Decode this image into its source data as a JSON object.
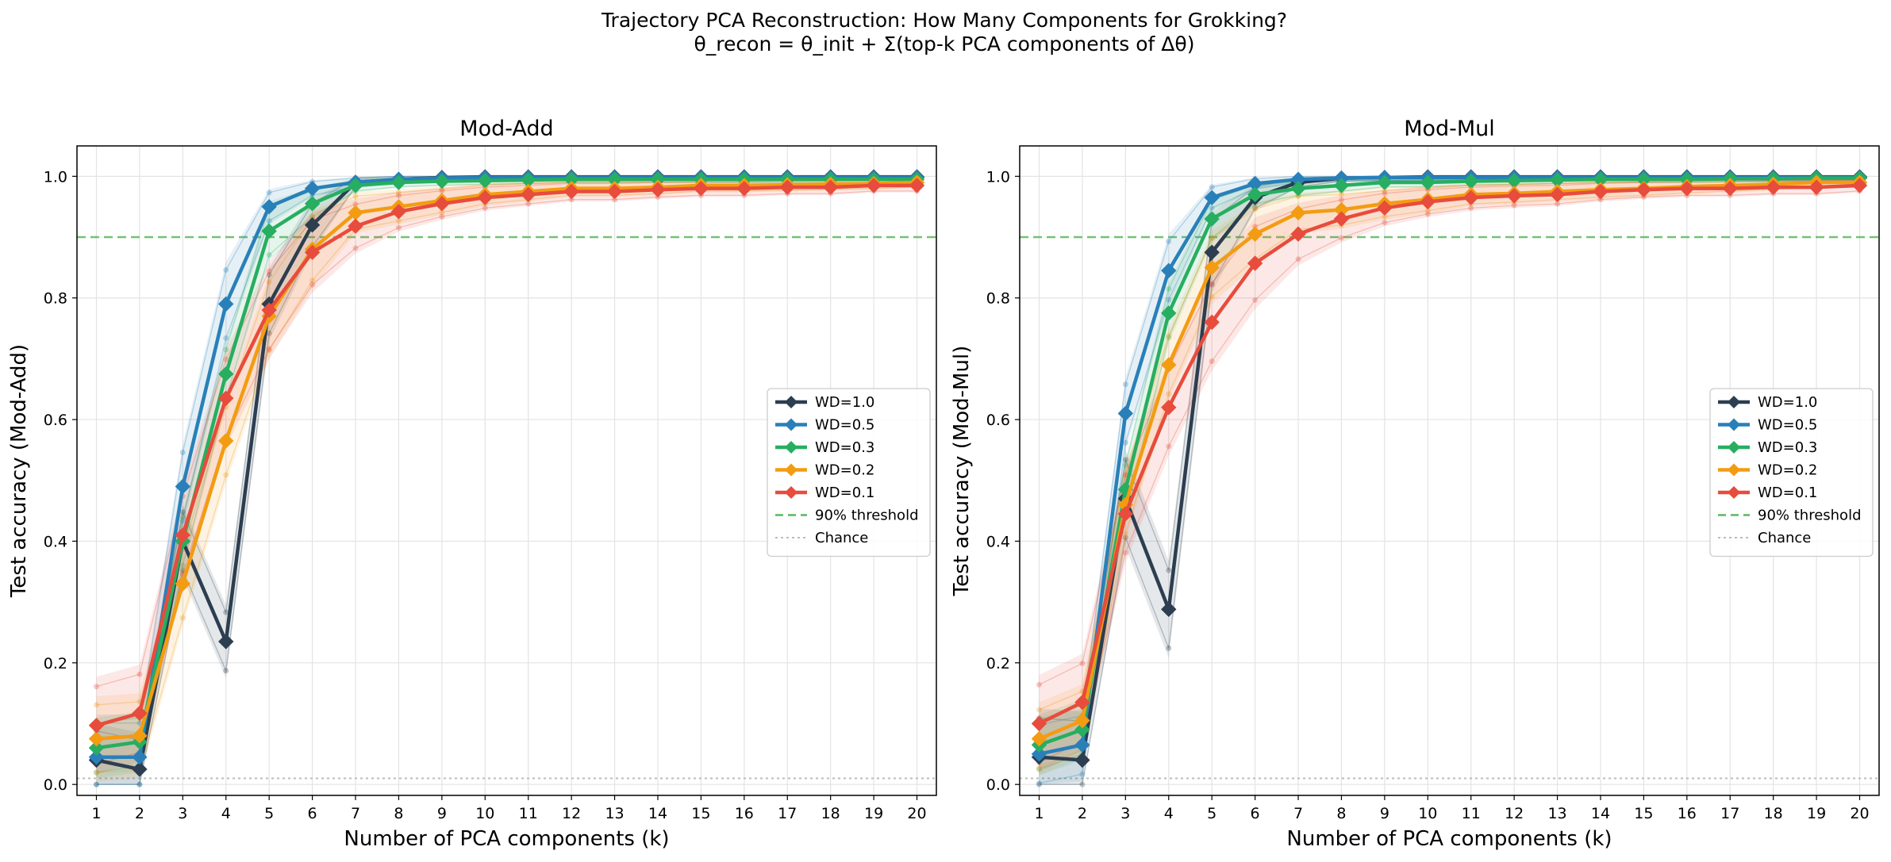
{
  "figure": {
    "title_line1": "Trajectory PCA Reconstruction: How Many Components for Grokking?",
    "title_line2": "θ_recon = θ_init + Σ(top-k PCA components of Δθ)"
  },
  "colors": {
    "WD=1.0": "#2c3e50",
    "WD=0.5": "#2980b9",
    "WD=0.3": "#27ae60",
    "WD=0.2": "#f39c12",
    "WD=0.1": "#e74c3c",
    "threshold": "#5cb85c",
    "chance": "#bbbbbb"
  },
  "chart_data": [
    {
      "type": "line",
      "title": "Mod-Add",
      "xlabel": "Number of PCA components (k)",
      "ylabel": "Test accuracy (Mod-Add)",
      "x": [
        1,
        2,
        3,
        4,
        5,
        6,
        7,
        8,
        9,
        10,
        11,
        12,
        13,
        14,
        15,
        16,
        17,
        18,
        19,
        20
      ],
      "xlim": [
        0.55,
        20.45
      ],
      "ylim": [
        -0.018,
        1.05
      ],
      "yticks": [
        0.0,
        0.2,
        0.4,
        0.6,
        0.8,
        1.0
      ],
      "ytick_labels": [
        "0.0",
        "0.2",
        "0.4",
        "0.6",
        "0.8",
        "1.0"
      ],
      "grid": true,
      "legend_position": "center-right",
      "threshold": {
        "name": "90% threshold",
        "value": 0.9
      },
      "chance": {
        "name": "Chance",
        "value": 0.01
      },
      "series": [
        {
          "name": "WD=1.0",
          "values": [
            0.04,
            0.025,
            0.4,
            0.235,
            0.79,
            0.92,
            0.99,
            0.995,
            0.998,
            0.999,
            0.999,
            0.999,
            0.999,
            0.999,
            0.999,
            0.999,
            0.999,
            0.999,
            0.999,
            0.999
          ],
          "band": 0.06
        },
        {
          "name": "WD=0.5",
          "values": [
            0.045,
            0.045,
            0.49,
            0.79,
            0.95,
            0.98,
            0.99,
            0.995,
            0.997,
            0.998,
            0.998,
            0.998,
            0.998,
            0.998,
            0.998,
            0.998,
            0.998,
            0.998,
            0.998,
            0.998
          ],
          "band": 0.07
        },
        {
          "name": "WD=0.3",
          "values": [
            0.06,
            0.07,
            0.4,
            0.675,
            0.91,
            0.955,
            0.985,
            0.99,
            0.992,
            0.993,
            0.994,
            0.995,
            0.995,
            0.995,
            0.995,
            0.995,
            0.995,
            0.995,
            0.995,
            0.995
          ],
          "band": 0.05
        },
        {
          "name": "WD=0.2",
          "values": [
            0.075,
            0.08,
            0.33,
            0.565,
            0.77,
            0.88,
            0.94,
            0.95,
            0.96,
            0.97,
            0.975,
            0.98,
            0.98,
            0.982,
            0.985,
            0.985,
            0.986,
            0.987,
            0.988,
            0.99
          ],
          "band": 0.07
        },
        {
          "name": "WD=0.1",
          "values": [
            0.097,
            0.117,
            0.41,
            0.635,
            0.78,
            0.875,
            0.918,
            0.942,
            0.955,
            0.965,
            0.97,
            0.975,
            0.975,
            0.978,
            0.98,
            0.98,
            0.982,
            0.982,
            0.985,
            0.985
          ],
          "band": 0.08
        }
      ]
    },
    {
      "type": "line",
      "title": "Mod-Mul",
      "xlabel": "Number of PCA components (k)",
      "ylabel": "Test accuracy (Mod-Mul)",
      "x": [
        1,
        2,
        3,
        4,
        5,
        6,
        7,
        8,
        9,
        10,
        11,
        12,
        13,
        14,
        15,
        16,
        17,
        18,
        19,
        20
      ],
      "xlim": [
        0.55,
        20.45
      ],
      "ylim": [
        -0.018,
        1.05
      ],
      "yticks": [
        0.0,
        0.2,
        0.4,
        0.6,
        0.8,
        1.0
      ],
      "ytick_labels": [
        "0.0",
        "0.2",
        "0.4",
        "0.6",
        "0.8",
        "1.0"
      ],
      "grid": true,
      "legend_position": "center-right",
      "threshold": {
        "name": "90% threshold",
        "value": 0.9
      },
      "chance": {
        "name": "Chance",
        "value": 0.01
      },
      "series": [
        {
          "name": "WD=1.0",
          "values": [
            0.045,
            0.04,
            0.47,
            0.288,
            0.875,
            0.965,
            0.99,
            0.997,
            0.998,
            0.999,
            0.999,
            0.999,
            0.999,
            0.999,
            0.999,
            0.999,
            0.999,
            0.999,
            0.999,
            0.999
          ],
          "band": 0.08
        },
        {
          "name": "WD=0.5",
          "values": [
            0.05,
            0.065,
            0.61,
            0.845,
            0.965,
            0.988,
            0.995,
            0.997,
            0.998,
            0.998,
            0.998,
            0.998,
            0.998,
            0.998,
            0.998,
            0.998,
            0.998,
            0.998,
            0.998,
            0.998
          ],
          "band": 0.06
        },
        {
          "name": "WD=0.3",
          "values": [
            0.065,
            0.09,
            0.485,
            0.775,
            0.93,
            0.97,
            0.98,
            0.985,
            0.99,
            0.99,
            0.992,
            0.993,
            0.994,
            0.995,
            0.995,
            0.995,
            0.996,
            0.996,
            0.997,
            0.997
          ],
          "band": 0.05
        },
        {
          "name": "WD=0.2",
          "values": [
            0.075,
            0.105,
            0.46,
            0.69,
            0.85,
            0.905,
            0.94,
            0.945,
            0.955,
            0.962,
            0.97,
            0.972,
            0.975,
            0.978,
            0.98,
            0.983,
            0.985,
            0.987,
            0.99,
            0.99
          ],
          "band": 0.06
        },
        {
          "name": "WD=0.1",
          "values": [
            0.1,
            0.135,
            0.445,
            0.62,
            0.76,
            0.857,
            0.905,
            0.93,
            0.948,
            0.958,
            0.965,
            0.968,
            0.97,
            0.975,
            0.978,
            0.98,
            0.98,
            0.982,
            0.982,
            0.985
          ],
          "band": 0.08
        }
      ]
    }
  ]
}
